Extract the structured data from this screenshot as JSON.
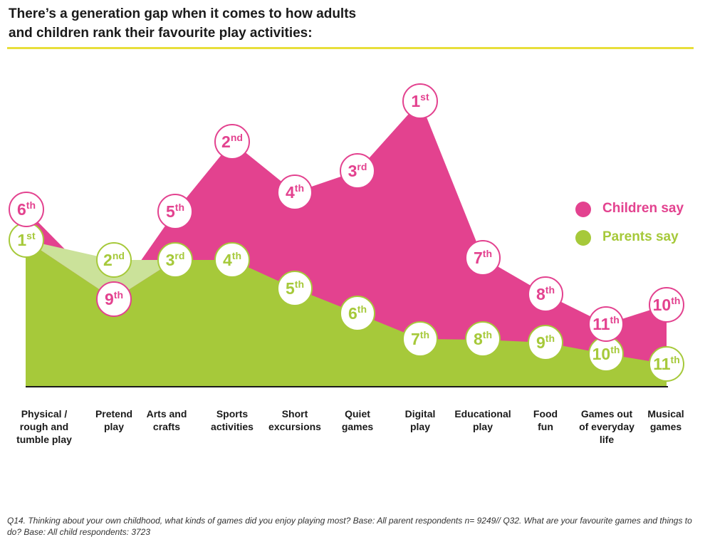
{
  "title_lines": [
    "There’s a generation gap when it comes to how adults",
    "and children rank their favourite play activities:"
  ],
  "footnote": "Q14. Thinking about your own childhood, what kinds of games did you enjoy playing most? Base: All parent respondents n= 9249// Q32. What are your favourite games and things to do? Base: All child respondents: 3723",
  "colors": {
    "children": "#e3428f",
    "parents": "#a6c93a",
    "parents_light": "#cbe29a",
    "rule": "#e8df3a"
  },
  "chart_data": {
    "type": "area",
    "title": "There’s a generation gap when it comes to how adults and children rank their favourite play activities:",
    "categories": [
      "Physical / rough and tumble play",
      "Pretend play",
      "Arts and crafts",
      "Sports activities",
      "Short excursions",
      "Quiet games",
      "Digital play",
      "Educational play",
      "Food fun",
      "Games out of everyday life",
      "Musical games"
    ],
    "category_label_lines": [
      [
        "Physical /",
        "rough and",
        "tumble play"
      ],
      [
        "Pretend",
        "play"
      ],
      [
        "Arts and",
        "crafts"
      ],
      [
        "Sports",
        "activities"
      ],
      [
        "Short",
        "excursions"
      ],
      [
        "Quiet",
        "games"
      ],
      [
        "Digital",
        "play"
      ],
      [
        "Educational",
        "play"
      ],
      [
        "Food",
        "fun"
      ],
      [
        "Games out",
        "of everyday",
        "life"
      ],
      [
        "Musical",
        "games"
      ]
    ],
    "series": [
      {
        "name": "Children say",
        "values": [
          6,
          9,
          5,
          2,
          4,
          3,
          1,
          7,
          8,
          11,
          10
        ],
        "labels": [
          [
            "6",
            "th"
          ],
          [
            "9",
            "th"
          ],
          [
            "5",
            "th"
          ],
          [
            "2",
            "nd"
          ],
          [
            "4",
            "th"
          ],
          [
            "3",
            "rd"
          ],
          [
            "1",
            "st"
          ],
          [
            "7",
            "th"
          ],
          [
            "8",
            "th"
          ],
          [
            "11",
            "th"
          ],
          [
            "10",
            "th"
          ]
        ]
      },
      {
        "name": "Parents say",
        "values": [
          1,
          2,
          3,
          4,
          5,
          6,
          7,
          8,
          9,
          10,
          11
        ],
        "labels": [
          [
            "1",
            "st"
          ],
          [
            "2",
            "nd"
          ],
          [
            "3",
            "rd"
          ],
          [
            "4",
            "th"
          ],
          [
            "5",
            "th"
          ],
          [
            "6",
            "th"
          ],
          [
            "7",
            "th"
          ],
          [
            "8",
            "th"
          ],
          [
            "9",
            "th"
          ],
          [
            "10",
            "th"
          ],
          [
            "11",
            "th"
          ]
        ]
      }
    ],
    "y_meaning": "rank (1 = most favourite)",
    "legend": "right",
    "grid": false
  }
}
